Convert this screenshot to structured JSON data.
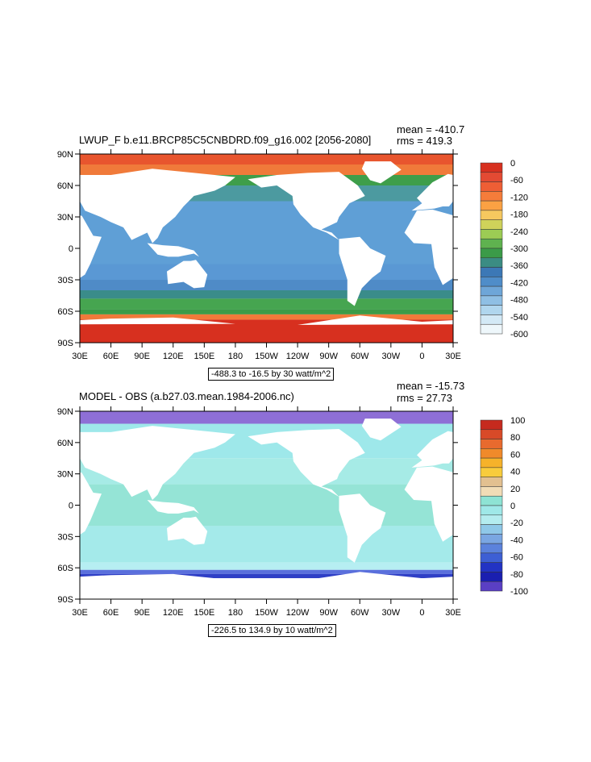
{
  "panels": [
    {
      "title": "LWUP_F b.e11.BRCP85C5CNBDRD.f09_g16.002 [2056-2080]",
      "mean": "mean = -410.7",
      "rms": "rms = 419.3",
      "info": "-488.3 to -16.5 by 30 watt/m^2",
      "lat_labels": [
        "90N",
        "60N",
        "30N",
        "0",
        "30S",
        "60S",
        "90S"
      ],
      "lon_labels": [
        "30E",
        "60E",
        "90E",
        "120E",
        "150E",
        "180",
        "150W",
        "120W",
        "90W",
        "60W",
        "30W",
        "0",
        "30E"
      ],
      "colorbar": {
        "labels": [
          "0",
          "-60",
          "-120",
          "-180",
          "-240",
          "-300",
          "-360",
          "-420",
          "-480",
          "-540",
          "-600"
        ],
        "colors": [
          "#d7301f",
          "#e34a33",
          "#ee5e35",
          "#f57c3a",
          "#fba143",
          "#f6c85f",
          "#cfd25a",
          "#9ccc54",
          "#5fb24f",
          "#3b9b48",
          "#3b8c83",
          "#3c78b6",
          "#4f8dc9",
          "#6ea6d8",
          "#8fbfe4",
          "#b0d6ee",
          "#d3e9f6",
          "#eef7fb"
        ]
      },
      "bands": [
        {
          "lat": 90,
          "color": "#e8552e"
        },
        {
          "lat": 80,
          "color": "#f07a3a"
        },
        {
          "lat": 70,
          "color": "#3e9e4a"
        },
        {
          "lat": 60,
          "color": "#4c9aa0"
        },
        {
          "lat": 45,
          "color": "#5f9fd6"
        },
        {
          "lat": -15,
          "color": "#5a98d4"
        },
        {
          "lat": -30,
          "color": "#4f8bc7"
        },
        {
          "lat": -40,
          "color": "#3a8c8a"
        },
        {
          "lat": -48,
          "color": "#46a550"
        },
        {
          "lat": -58,
          "color": "#3b9b48"
        },
        {
          "lat": -63,
          "color": "#f07a3a"
        },
        {
          "lat": -68,
          "color": "#d7301f"
        }
      ]
    },
    {
      "title": "MODEL - OBS (a.b27.03.mean.1984-2006.nc)",
      "mean": "mean = -15.73",
      "rms": "rms = 27.73",
      "info": "-226.5 to 134.9 by 10 watt/m^2",
      "lat_labels": [
        "90N",
        "60N",
        "30N",
        "0",
        "30S",
        "60S",
        "90S"
      ],
      "lon_labels": [
        "30E",
        "60E",
        "90E",
        "120E",
        "150E",
        "180",
        "150W",
        "120W",
        "90W",
        "60W",
        "30W",
        "0",
        "30E"
      ],
      "colorbar": {
        "labels": [
          "100",
          "80",
          "60",
          "40",
          "20",
          "0",
          "-20",
          "-40",
          "-60",
          "-80",
          "-100"
        ],
        "colors": [
          "#c62a1e",
          "#d84a28",
          "#e86a2e",
          "#f08a2a",
          "#f6b22a",
          "#f8cc3c",
          "#e2c090",
          "#f1dcb6",
          "#8ee3d4",
          "#9fe8e8",
          "#b4ecef",
          "#8fc8e8",
          "#7aa6e2",
          "#5b82dc",
          "#3d5fd4",
          "#2233c4",
          "#1a1fb0",
          "#5a3fc4"
        ]
      },
      "bands": [
        {
          "lat": 90,
          "color": "#8e6fd6"
        },
        {
          "lat": 78,
          "color": "#9ee8ea"
        },
        {
          "lat": 45,
          "color": "#a6ebe6"
        },
        {
          "lat": 20,
          "color": "#95e4d6"
        },
        {
          "lat": -20,
          "color": "#a4eaea"
        },
        {
          "lat": -55,
          "color": "#b6eef2"
        },
        {
          "lat": -62,
          "color": "#5a6fdc"
        },
        {
          "lat": -66,
          "color": "#2f3fc6"
        },
        {
          "lat": -70,
          "color": "#ffffff"
        }
      ]
    }
  ]
}
